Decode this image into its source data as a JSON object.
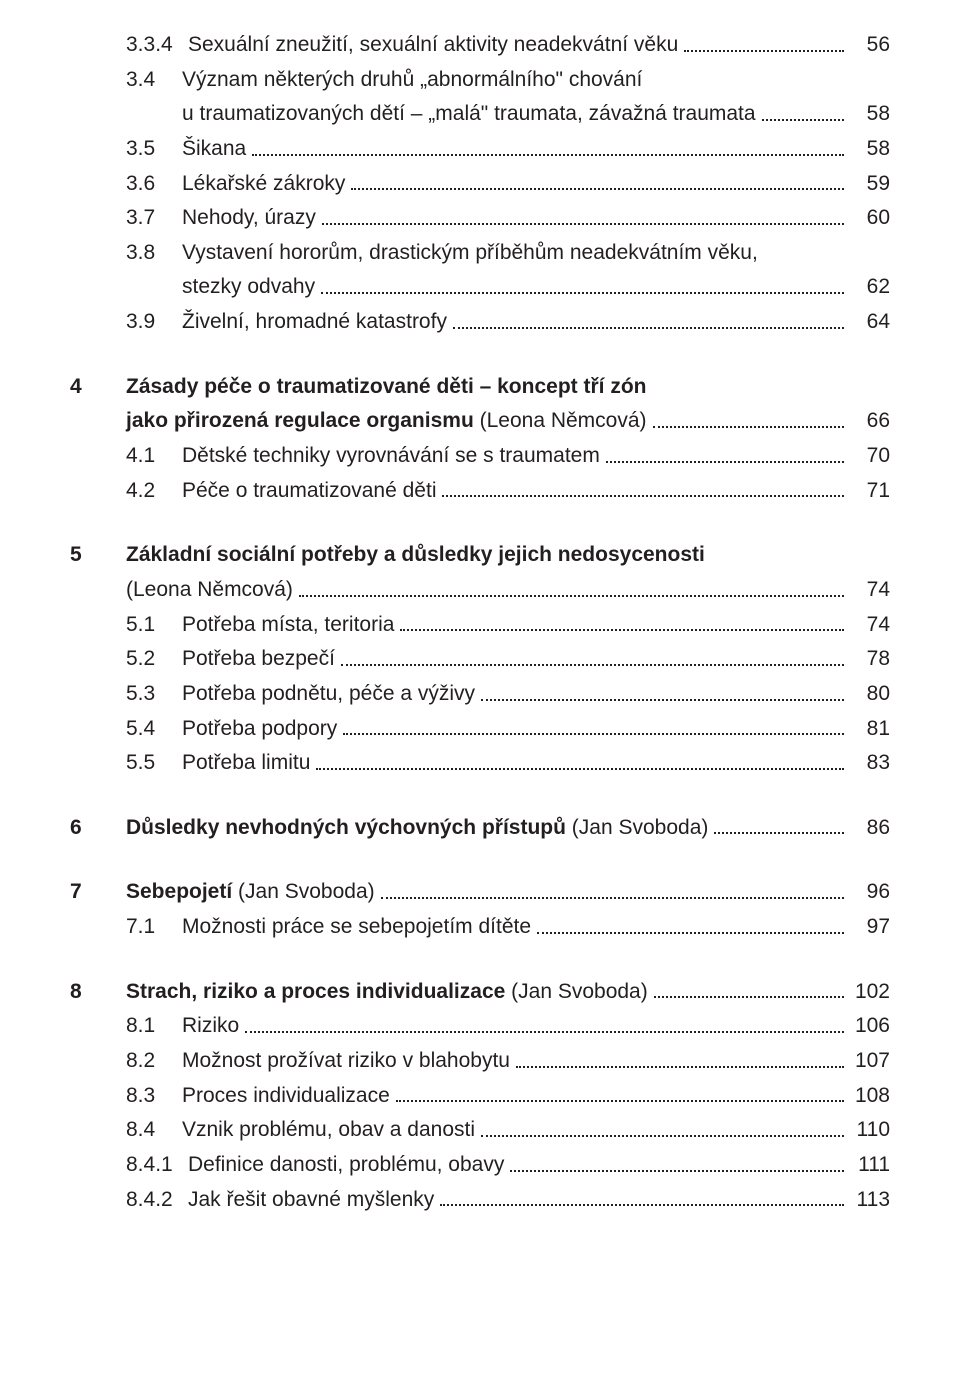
{
  "font_color": "#231f20",
  "background_color": "#ffffff",
  "dot_color": "#231f20",
  "entries": [
    {
      "level": 2,
      "num": "3.3.4",
      "label": "Sexuální zneužití, sexuální aktivity neadekvátní věku",
      "page": "56",
      "bold": false
    },
    {
      "level": 1,
      "num": "3.4",
      "label": "Význam některých druhů „abnormálního\" chování",
      "cont": "u traumatizovaných dětí – „malá\" traumata, závažná traumata",
      "page": "58",
      "bold": false
    },
    {
      "level": 1,
      "num": "3.5",
      "label": "Šikana",
      "page": "58",
      "bold": false
    },
    {
      "level": 1,
      "num": "3.6",
      "label": "Lékařské zákroky",
      "page": "59",
      "bold": false
    },
    {
      "level": 1,
      "num": "3.7",
      "label": "Nehody, úrazy",
      "page": "60",
      "bold": false
    },
    {
      "level": 1,
      "num": "3.8",
      "label": "Vystavení hororům, drastickým příběhům neadekvátním věku,",
      "cont": "stezky odvahy",
      "page": "62",
      "bold": false
    },
    {
      "level": 1,
      "num": "3.9",
      "label": "Živelní, hromadné katastrofy",
      "page": "64",
      "bold": false
    },
    {
      "gap": true
    },
    {
      "level": 0,
      "num": "4",
      "label": "Zásady péče o traumatizované děti – koncept tří zón",
      "cont_bold": "jako přirozená regulace organismu ",
      "cont_plain": "(Leona Němcová)",
      "page": "66",
      "bold": true
    },
    {
      "level": 1,
      "num": "4.1",
      "label": "Dětské techniky vyrovnávání se s traumatem",
      "page": "70",
      "bold": false
    },
    {
      "level": 1,
      "num": "4.2",
      "label": "Péče o traumatizované děti",
      "page": "71",
      "bold": false
    },
    {
      "gap": true
    },
    {
      "level": 0,
      "num": "5",
      "label": "Základní sociální potřeby a důsledky jejich nedosycenosti",
      "cont_plain_only": "(Leona Němcová)",
      "page": "74",
      "bold": true
    },
    {
      "level": 1,
      "num": "5.1",
      "label": "Potřeba místa, teritoria",
      "page": "74",
      "bold": false
    },
    {
      "level": 1,
      "num": "5.2",
      "label": "Potřeba bezpečí",
      "page": "78",
      "bold": false
    },
    {
      "level": 1,
      "num": "5.3",
      "label": "Potřeba podnětu, péče a výživy",
      "page": "80",
      "bold": false
    },
    {
      "level": 1,
      "num": "5.4",
      "label": "Potřeba podpory",
      "page": "81",
      "bold": false
    },
    {
      "level": 1,
      "num": "5.5",
      "label": "Potřeba limitu",
      "page": "83",
      "bold": false
    },
    {
      "gap": true
    },
    {
      "level": 0,
      "num": "6",
      "label_bold": "Důsledky nevhodných výchovných přístupů ",
      "label_plain": "(Jan Svoboda)",
      "page": "86",
      "bold": true
    },
    {
      "gap": true
    },
    {
      "level": 0,
      "num": "7",
      "label_bold": "Sebepojetí ",
      "label_plain": "(Jan Svoboda)",
      "page": "96",
      "bold": true
    },
    {
      "level": 1,
      "num": "7.1",
      "label": "Možnosti práce se sebepojetím dítěte",
      "page": "97",
      "bold": false
    },
    {
      "gap": true
    },
    {
      "level": 0,
      "num": "8",
      "label_bold": "Strach, riziko a proces individualizace ",
      "label_plain": "(Jan Svoboda)",
      "page": "102",
      "bold": true
    },
    {
      "level": 1,
      "num": "8.1",
      "label": "Riziko",
      "page": "106",
      "bold": false
    },
    {
      "level": 1,
      "num": "8.2",
      "label": "Možnost prožívat riziko v blahobytu",
      "page": "107",
      "bold": false
    },
    {
      "level": 1,
      "num": "8.3",
      "label": "Proces individualizace",
      "page": "108",
      "bold": false
    },
    {
      "level": 1,
      "num": "8.4",
      "label": "Vznik problému, obav a danosti",
      "page": "110",
      "bold": false
    },
    {
      "level": 2,
      "num": "8.4.1",
      "label": "Definice danosti, problému, obavy",
      "page": "111",
      "bold": false
    },
    {
      "level": 2,
      "num": "8.4.2",
      "label": "Jak řešit obavné myšlenky",
      "page": "113",
      "bold": false
    }
  ]
}
